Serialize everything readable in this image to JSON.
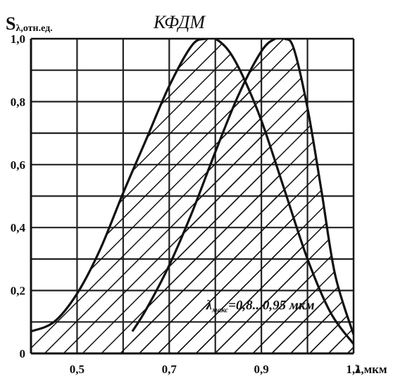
{
  "chart_data": {
    "type": "area",
    "title": "КФДМ",
    "ylabel_main": "S",
    "ylabel_sub": "λ,отн.ед.",
    "xlabel": "λ,мкм",
    "xlim": [
      0.4,
      1.1
    ],
    "ylim": [
      0,
      1.0
    ],
    "grid": true,
    "x_ticks": [
      "0,5",
      "0,7",
      "0,9",
      "1,1"
    ],
    "x_tick_values": [
      0.5,
      0.7,
      0.9,
      1.1
    ],
    "y_ticks": [
      "0",
      "0,2",
      "0,4",
      "0,6",
      "0,8",
      "1,0"
    ],
    "y_tick_values": [
      0,
      0.2,
      0.4,
      0.6,
      0.8,
      1.0
    ],
    "annotation_main": "λ",
    "annotation_sub": "макс",
    "annotation_rest": "=0,8...0,95 мкм",
    "annotation_at": [
      0.78,
      0.14
    ],
    "series": [
      {
        "x": [
          0.4,
          0.45,
          0.5,
          0.55,
          0.6,
          0.65,
          0.7,
          0.75,
          0.78,
          0.8,
          0.83,
          0.86,
          0.9,
          0.95,
          1.0,
          1.05,
          1.1
        ],
        "y": [
          0.07,
          0.1,
          0.19,
          0.33,
          0.51,
          0.68,
          0.85,
          0.98,
          1.0,
          1.0,
          0.96,
          0.88,
          0.74,
          0.52,
          0.3,
          0.13,
          0.03
        ]
      },
      {
        "x": [
          0.62,
          0.65,
          0.7,
          0.75,
          0.8,
          0.85,
          0.9,
          0.93,
          0.95,
          0.97,
          1.0,
          1.03,
          1.06,
          1.1
        ],
        "y": [
          0.07,
          0.14,
          0.28,
          0.45,
          0.64,
          0.82,
          0.96,
          1.0,
          1.0,
          0.97,
          0.78,
          0.52,
          0.25,
          0.06
        ]
      }
    ]
  }
}
